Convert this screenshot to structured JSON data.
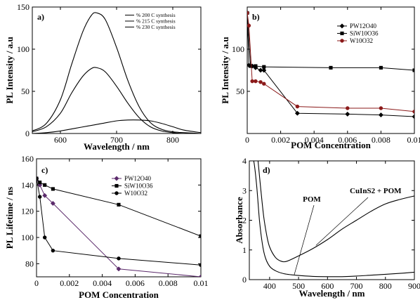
{
  "chart_data": [
    {
      "panel": "a)",
      "type": "line",
      "xlabel": "Wavelength / nm",
      "ylabel": "PL Intensity / a.u",
      "xlim": [
        550,
        850
      ],
      "ylim": [
        0,
        150
      ],
      "xticks": [
        600,
        700,
        800
      ],
      "yticks": [
        0,
        50,
        100,
        150
      ],
      "legend": "top-right",
      "series": [
        {
          "name": "% 200 C synthesis",
          "x": [
            550,
            575,
            600,
            620,
            640,
            655,
            665,
            680,
            700,
            720,
            740,
            760,
            780,
            800,
            820,
            850
          ],
          "y": [
            3,
            12,
            40,
            82,
            121,
            140,
            143,
            135,
            102,
            63,
            32,
            13,
            5,
            2,
            1,
            0
          ]
        },
        {
          "name": "% 215 C synthesis",
          "x": [
            550,
            575,
            600,
            620,
            640,
            655,
            665,
            680,
            700,
            720,
            740,
            760,
            780,
            800,
            820,
            850
          ],
          "y": [
            2,
            8,
            24,
            48,
            68,
            77,
            78,
            73,
            56,
            36,
            19,
            8,
            3,
            1,
            0,
            0
          ]
        },
        {
          "name": "% 230 C synthesis",
          "x": [
            550,
            575,
            600,
            625,
            650,
            675,
            700,
            720,
            740,
            760,
            780,
            800,
            820,
            850
          ],
          "y": [
            0,
            1,
            3,
            6,
            9,
            12,
            15,
            16,
            16,
            15,
            12,
            8,
            4,
            1
          ]
        }
      ]
    },
    {
      "panel": "b)",
      "type": "line",
      "xlabel": "POM Concentration",
      "ylabel": "PL Intensity / a.u",
      "xlim": [
        0,
        0.01
      ],
      "ylim": [
        0,
        150
      ],
      "xticks": [
        0,
        0.002,
        0.004,
        0.006,
        0.008,
        0.01
      ],
      "xticklabels": [
        "0",
        "0.002",
        "0.004",
        "0.006",
        "0.008",
        "0.01"
      ],
      "yticks": [
        50,
        100
      ],
      "legend": "top-right",
      "series": [
        {
          "name": "PW12O40",
          "marker": "diamond",
          "color": "#000000",
          "x": [
            0,
            0.0001,
            0.0003,
            0.0005,
            0.0008,
            0.001,
            0.003,
            0.006,
            0.008,
            0.01
          ],
          "y": [
            143,
            81,
            80,
            78,
            75,
            75,
            24,
            23,
            22,
            20
          ]
        },
        {
          "name": "SiW10O36",
          "marker": "square",
          "color": "#000000",
          "x": [
            0,
            0.0002,
            0.0005,
            0.001,
            0.005,
            0.008,
            0.01
          ],
          "y": [
            143,
            80,
            80,
            79,
            78,
            78,
            75
          ]
        },
        {
          "name": "W10O32",
          "marker": "circle",
          "color": "#8b1a1a",
          "x": [
            0,
            0.0001,
            0.0003,
            0.0005,
            0.0008,
            0.001,
            0.003,
            0.006,
            0.008,
            0.01
          ],
          "y": [
            143,
            128,
            62,
            62,
            61,
            59,
            32,
            30,
            30,
            26
          ]
        }
      ]
    },
    {
      "panel": "c)",
      "type": "line",
      "xlabel": "POM Concentration",
      "ylabel": "PL Lifetime / ns",
      "xlim": [
        0,
        0.01
      ],
      "ylim": [
        70,
        160
      ],
      "xticks": [
        0,
        0.002,
        0.004,
        0.006,
        0.008,
        0.01
      ],
      "xticklabels": [
        "0",
        "0.002",
        "0.004",
        "0.006",
        "0.008",
        "0.01"
      ],
      "yticks": [
        80,
        100,
        120,
        140,
        160
      ],
      "legend": "top-right",
      "series": [
        {
          "name": "PW12O40",
          "marker": "diamond",
          "color": "#5b2a6b",
          "x": [
            0,
            0.0002,
            0.0005,
            0.001,
            0.005,
            0.01
          ],
          "y": [
            145,
            140,
            132,
            126,
            76,
            70
          ]
        },
        {
          "name": "SiW10O36",
          "marker": "square",
          "color": "#000000",
          "x": [
            0,
            0.0002,
            0.0005,
            0.001,
            0.005,
            0.01
          ],
          "y": [
            145,
            142,
            140,
            137,
            125,
            101
          ]
        },
        {
          "name": "W10O32",
          "marker": "circle",
          "color": "#000000",
          "x": [
            0,
            0.0002,
            0.0005,
            0.001,
            0.005,
            0.01
          ],
          "y": [
            145,
            131,
            100,
            90,
            84,
            79
          ]
        }
      ]
    },
    {
      "panel": "d)",
      "type": "line",
      "xlabel": "Wavelength / nm",
      "ylabel": "Absorbance",
      "xlim": [
        330,
        900
      ],
      "ylim": [
        0,
        4
      ],
      "xticks": [
        400,
        500,
        600,
        700,
        800,
        900
      ],
      "yticks": [
        0,
        1,
        2,
        3,
        4
      ],
      "annotations": [
        "POM",
        "CuInS2 + POM"
      ],
      "series": [
        {
          "name": "POM",
          "x": [
            335,
            345,
            355,
            365,
            375,
            385,
            400,
            420,
            450,
            500,
            550,
            600,
            650,
            700,
            750,
            800,
            850,
            900
          ],
          "y": [
            4,
            4,
            3.2,
            2.0,
            1.2,
            0.75,
            0.45,
            0.3,
            0.2,
            0.14,
            0.11,
            0.1,
            0.1,
            0.12,
            0.15,
            0.18,
            0.21,
            0.25
          ]
        },
        {
          "name": "CuInS2 + POM",
          "x": [
            360,
            370,
            380,
            390,
            400,
            420,
            440,
            460,
            500,
            550,
            600,
            650,
            700,
            750,
            800,
            850,
            900
          ],
          "y": [
            4,
            3.0,
            2.1,
            1.5,
            1.1,
            0.75,
            0.62,
            0.62,
            0.8,
            1.05,
            1.35,
            1.7,
            2.0,
            2.3,
            2.55,
            2.7,
            2.82
          ]
        }
      ]
    }
  ]
}
